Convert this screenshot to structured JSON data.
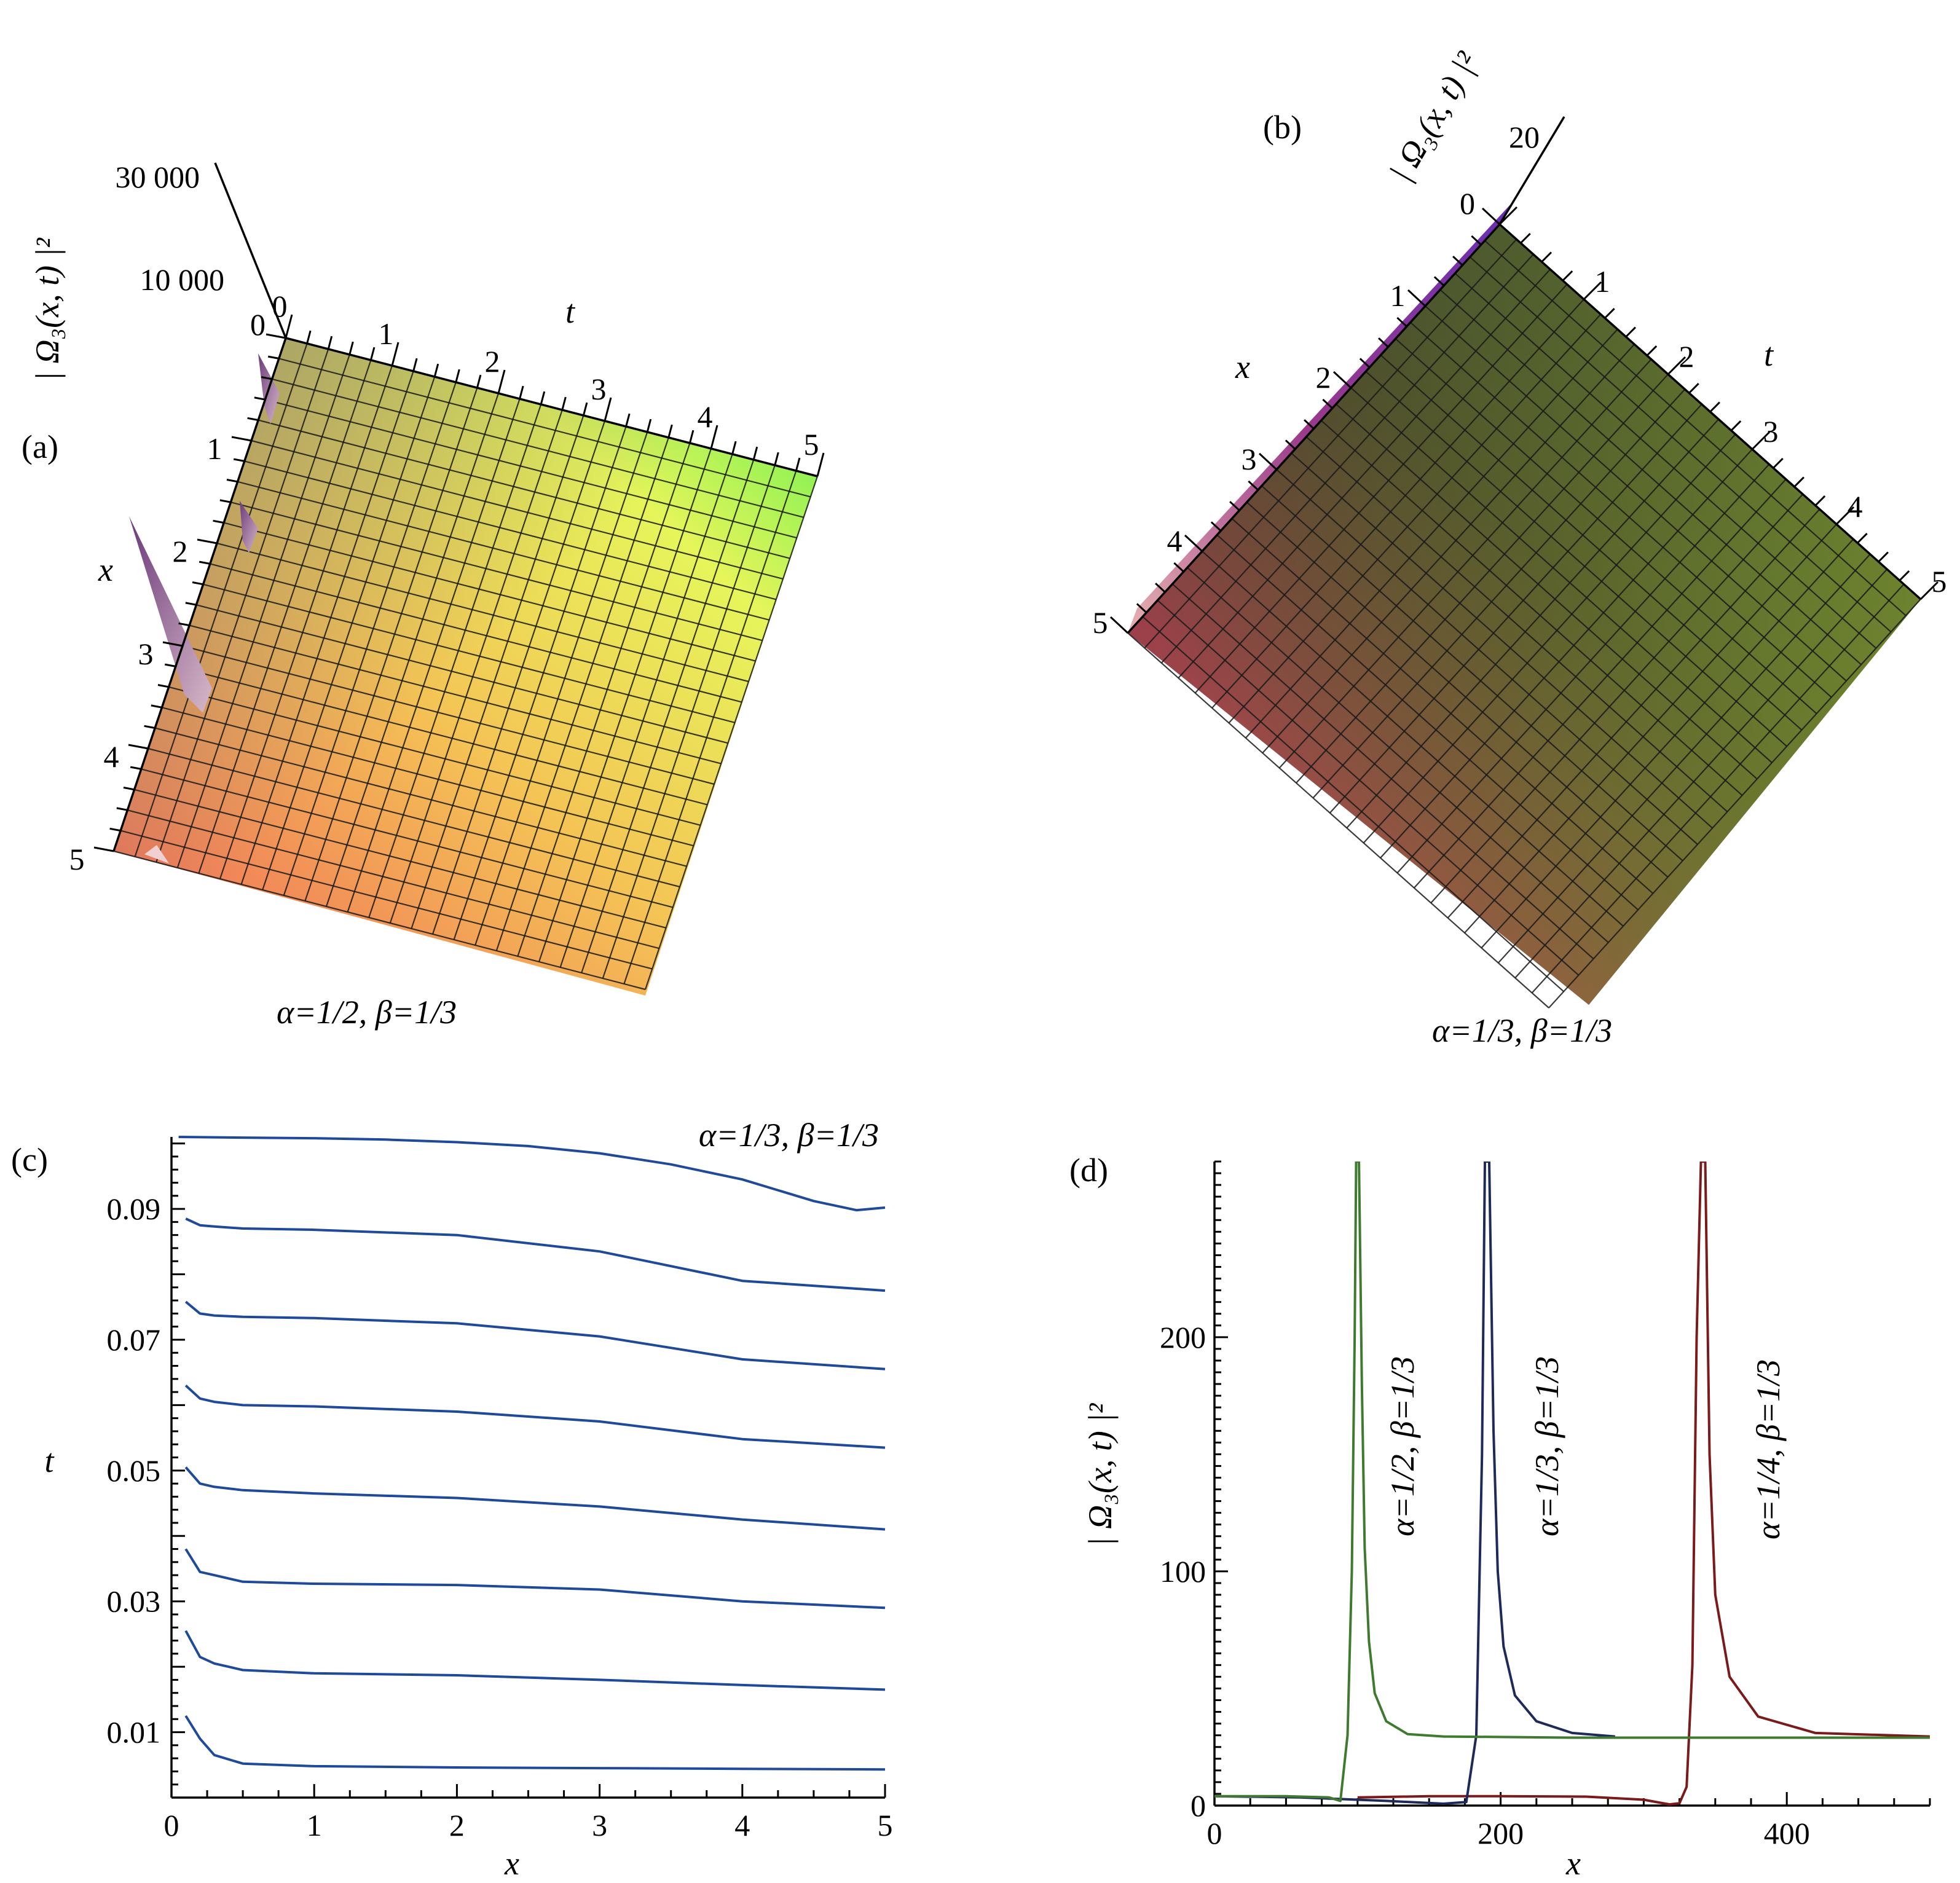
{
  "panels": {
    "a": {
      "label": "(a)",
      "z_axis_label": "| Ω₃(x, t) |²",
      "z_ticks": [
        "30 000",
        "10 000",
        "0"
      ],
      "t_label": "t",
      "x_label": "x",
      "t_ticks": [
        "0",
        "1",
        "2",
        "3",
        "4",
        "5"
      ],
      "x_ticks": [
        "1",
        "2",
        "3",
        "4",
        "5"
      ],
      "caption": "α=1/2, β=1/3"
    },
    "b": {
      "label": "(b)",
      "z_axis_label": "| Ω₃(x, t) |²",
      "z_ticks": [
        "20",
        "0"
      ],
      "t_label": "t",
      "x_label": "x",
      "t_ticks": [
        "1",
        "2",
        "3",
        "4",
        "5"
      ],
      "x_ticks": [
        "1",
        "2",
        "3",
        "4",
        "5"
      ],
      "caption": "α=1/3, β=1/3"
    }
  },
  "chart_data": [
    {
      "panel": "a",
      "type": "surface",
      "title": "α=1/2, β=1/3",
      "xlabel": "x",
      "ylabel": "t",
      "zlabel": "| Ω₃(x, t) |²",
      "xlim": [
        0,
        5
      ],
      "ylim": [
        0,
        5
      ],
      "zticks": [
        0,
        10000,
        30000
      ],
      "colors": [
        "#f0605a",
        "#f4c455",
        "#e6f55a",
        "#55f050",
        "#7a7a70"
      ]
    },
    {
      "panel": "b",
      "type": "surface",
      "title": "α=1/3, β=1/3",
      "xlabel": "x",
      "ylabel": "t",
      "zlabel": "| Ω₃(x, t) |²",
      "xlim": [
        0,
        5
      ],
      "ylim": [
        0,
        5
      ],
      "zticks": [
        0,
        20
      ],
      "colors": [
        "#b04050",
        "#2a3a2a",
        "#3a8a30",
        "#8a9030",
        "#5a2a8a"
      ]
    },
    {
      "panel": "c",
      "label": "(c)",
      "type": "line",
      "title": "α=1/3, β=1/3",
      "xlabel": "x",
      "ylabel": "t",
      "xlim": [
        0,
        5
      ],
      "ylim": [
        0,
        0.101
      ],
      "xticks": [
        "0",
        "1",
        "2",
        "3",
        "4",
        "5"
      ],
      "yticks": [
        "0.01",
        "0.03",
        "0.05",
        "0.07",
        "0.09"
      ],
      "color": "#1f4a9a",
      "series": [
        {
          "x": [
            0.1,
            0.2,
            0.3,
            0.5,
            1,
            2,
            3,
            4,
            5
          ],
          "y": [
            0.0125,
            0.009,
            0.0065,
            0.0052,
            0.0048,
            0.0046,
            0.0045,
            0.0044,
            0.0043
          ]
        },
        {
          "x": [
            0.1,
            0.2,
            0.3,
            0.5,
            1,
            2,
            3,
            4,
            5
          ],
          "y": [
            0.0255,
            0.0215,
            0.0205,
            0.0195,
            0.019,
            0.0187,
            0.018,
            0.0172,
            0.0165
          ]
        },
        {
          "x": [
            0.1,
            0.2,
            0.3,
            0.5,
            1,
            2,
            3,
            4,
            5
          ],
          "y": [
            0.038,
            0.0345,
            0.034,
            0.033,
            0.0327,
            0.0325,
            0.0318,
            0.03,
            0.029
          ]
        },
        {
          "x": [
            0.1,
            0.2,
            0.3,
            0.5,
            1,
            2,
            3,
            4,
            5
          ],
          "y": [
            0.0505,
            0.048,
            0.0475,
            0.047,
            0.0465,
            0.0458,
            0.0445,
            0.0425,
            0.041
          ]
        },
        {
          "x": [
            0.1,
            0.2,
            0.3,
            0.5,
            1,
            2,
            3,
            4,
            5
          ],
          "y": [
            0.063,
            0.061,
            0.0605,
            0.06,
            0.0598,
            0.059,
            0.0575,
            0.0548,
            0.0535
          ]
        },
        {
          "x": [
            0.1,
            0.2,
            0.3,
            0.5,
            1,
            2,
            3,
            4,
            5
          ],
          "y": [
            0.0758,
            0.074,
            0.0737,
            0.0735,
            0.0733,
            0.0725,
            0.0705,
            0.067,
            0.0655
          ]
        },
        {
          "x": [
            0.1,
            0.2,
            0.3,
            0.5,
            1,
            2,
            3,
            4,
            5
          ],
          "y": [
            0.0885,
            0.0875,
            0.0873,
            0.087,
            0.0868,
            0.086,
            0.0835,
            0.079,
            0.0775
          ]
        },
        {
          "x": [
            0.05,
            0.5,
            1,
            1.5,
            2,
            2.5,
            3,
            3.5,
            4,
            4.5,
            4.8,
            5
          ],
          "y": [
            0.101,
            0.1009,
            0.1008,
            0.1006,
            0.1002,
            0.0996,
            0.0985,
            0.0968,
            0.0945,
            0.0912,
            0.0898,
            0.0902
          ]
        }
      ]
    },
    {
      "panel": "d",
      "label": "(d)",
      "type": "line",
      "xlabel": "x",
      "ylabel": "| Ω₃(x, t) |²",
      "xlim": [
        0,
        500
      ],
      "ylim": [
        0,
        275
      ],
      "xticks": [
        "0",
        "200",
        "400"
      ],
      "yticks": [
        "0",
        "100",
        "200"
      ],
      "series": [
        {
          "name": "α=1/2, β=1/3",
          "color": "#3f7a30",
          "x": [
            0,
            50,
            80,
            88,
            93,
            96,
            98,
            99,
            101,
            103,
            105,
            108,
            112,
            120,
            135,
            160,
            250,
            500
          ],
          "y": [
            4,
            4,
            3.5,
            2,
            30,
            100,
            200,
            275,
            275,
            180,
            110,
            70,
            48,
            36,
            30.5,
            29.5,
            29,
            29
          ]
        },
        {
          "name": "α=1/3, β=1/3",
          "color": "#1e2a5a",
          "x": [
            0,
            60,
            120,
            160,
            176,
            183,
            187,
            189,
            192,
            195,
            198,
            202,
            210,
            225,
            250,
            280
          ],
          "y": [
            4,
            3.5,
            2,
            0.8,
            1.5,
            30,
            150,
            275,
            275,
            160,
            100,
            68,
            47,
            36,
            31,
            29.5
          ]
        },
        {
          "name": "α=1/4, β=1/3",
          "color": "#7a1a1a",
          "x": [
            100,
            150,
            200,
            260,
            300,
            318,
            325,
            330,
            334,
            337,
            340,
            343,
            346,
            350,
            360,
            380,
            420,
            500
          ],
          "y": [
            3.5,
            4,
            4,
            3.8,
            2.5,
            0.5,
            1,
            8,
            60,
            200,
            275,
            275,
            150,
            90,
            55,
            38,
            31,
            29.5
          ]
        }
      ]
    }
  ]
}
